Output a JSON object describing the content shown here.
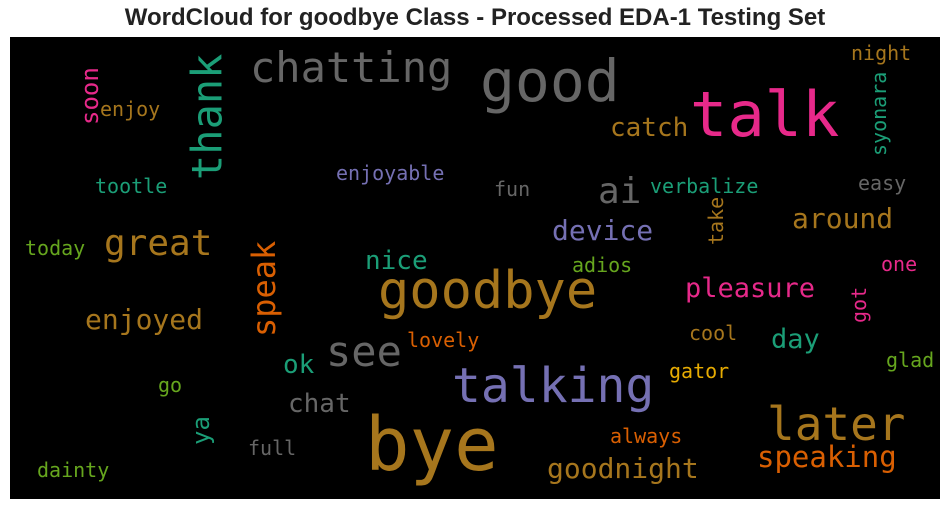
{
  "chart_data": {
    "type": "wordcloud",
    "title": "WordCloud for goodbye Class - Processed EDA-1 Testing Set",
    "background": "#000000",
    "colormap": [
      "#1b9e77",
      "#d95f02",
      "#7570b3",
      "#e7298a",
      "#66a61e",
      "#e6ab02",
      "#a6761d",
      "#666666"
    ],
    "words": [
      {
        "text": "bye",
        "color": "#a6761d",
        "orientation": "horizontal"
      },
      {
        "text": "goodbye",
        "color": "#a6761d",
        "orientation": "horizontal"
      },
      {
        "text": "talk",
        "color": "#e7298a",
        "orientation": "horizontal"
      },
      {
        "text": "good",
        "color": "#666666",
        "orientation": "horizontal"
      },
      {
        "text": "talking",
        "color": "#7570b3",
        "orientation": "horizontal"
      },
      {
        "text": "later",
        "color": "#a6761d",
        "orientation": "horizontal"
      },
      {
        "text": "thank",
        "color": "#1b9e77",
        "orientation": "vertical"
      },
      {
        "text": "chatting",
        "color": "#666666",
        "orientation": "horizontal"
      },
      {
        "text": "see",
        "color": "#666666",
        "orientation": "horizontal"
      },
      {
        "text": "great",
        "color": "#a6761d",
        "orientation": "horizontal"
      },
      {
        "text": "ai",
        "color": "#666666",
        "orientation": "horizontal"
      },
      {
        "text": "speak",
        "color": "#d95f02",
        "orientation": "vertical"
      },
      {
        "text": "speaking",
        "color": "#d95f02",
        "orientation": "horizontal"
      },
      {
        "text": "goodnight",
        "color": "#a6761d",
        "orientation": "horizontal"
      },
      {
        "text": "enjoyed",
        "color": "#a6761d",
        "orientation": "horizontal"
      },
      {
        "text": "device",
        "color": "#7570b3",
        "orientation": "horizontal"
      },
      {
        "text": "around",
        "color": "#a6761d",
        "orientation": "horizontal"
      },
      {
        "text": "pleasure",
        "color": "#e7298a",
        "orientation": "horizontal"
      },
      {
        "text": "catch",
        "color": "#a6761d",
        "orientation": "horizontal"
      },
      {
        "text": "day",
        "color": "#1b9e77",
        "orientation": "horizontal"
      },
      {
        "text": "chat",
        "color": "#666666",
        "orientation": "horizontal"
      },
      {
        "text": "nice",
        "color": "#1b9e77",
        "orientation": "horizontal"
      },
      {
        "text": "ok",
        "color": "#1b9e77",
        "orientation": "horizontal"
      },
      {
        "text": "soon",
        "color": "#e7298a",
        "orientation": "vertical"
      },
      {
        "text": "ya",
        "color": "#1b9e77",
        "orientation": "vertical"
      },
      {
        "text": "enjoyable",
        "color": "#7570b3",
        "orientation": "horizontal"
      },
      {
        "text": "verbalize",
        "color": "#1b9e77",
        "orientation": "horizontal"
      },
      {
        "text": "syonara",
        "color": "#1b9e77",
        "orientation": "vertical"
      },
      {
        "text": "night",
        "color": "#a6761d",
        "orientation": "horizontal"
      },
      {
        "text": "enjoy",
        "color": "#a6761d",
        "orientation": "horizontal"
      },
      {
        "text": "tootle",
        "color": "#1b9e77",
        "orientation": "horizontal"
      },
      {
        "text": "fun",
        "color": "#666666",
        "orientation": "horizontal"
      },
      {
        "text": "easy",
        "color": "#666666",
        "orientation": "horizontal"
      },
      {
        "text": "take",
        "color": "#a6761d",
        "orientation": "vertical"
      },
      {
        "text": "today",
        "color": "#66a61e",
        "orientation": "horizontal"
      },
      {
        "text": "adios",
        "color": "#66a61e",
        "orientation": "horizontal"
      },
      {
        "text": "one",
        "color": "#e7298a",
        "orientation": "horizontal"
      },
      {
        "text": "got",
        "color": "#e7298a",
        "orientation": "vertical"
      },
      {
        "text": "cool",
        "color": "#a6761d",
        "orientation": "horizontal"
      },
      {
        "text": "lovely",
        "color": "#d95f02",
        "orientation": "horizontal"
      },
      {
        "text": "glad",
        "color": "#66a61e",
        "orientation": "horizontal"
      },
      {
        "text": "gator",
        "color": "#e6ab02",
        "orientation": "horizontal"
      },
      {
        "text": "go",
        "color": "#66a61e",
        "orientation": "horizontal"
      },
      {
        "text": "always",
        "color": "#d95f02",
        "orientation": "horizontal"
      },
      {
        "text": "full",
        "color": "#666666",
        "orientation": "horizontal"
      },
      {
        "text": "dainty",
        "color": "#66a61e",
        "orientation": "horizontal"
      }
    ]
  }
}
